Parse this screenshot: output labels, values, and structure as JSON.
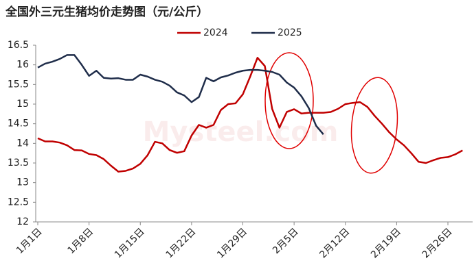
{
  "chart_data": {
    "type": "line",
    "title": "全国外三元生猪均价走势图（元/公斤）",
    "watermark": "Mysteel.com",
    "categories": [
      "1月1日",
      null,
      null,
      null,
      null,
      null,
      null,
      "1月8日",
      null,
      null,
      null,
      null,
      null,
      null,
      "1月15日",
      null,
      null,
      null,
      null,
      null,
      null,
      "1月22日",
      null,
      null,
      null,
      null,
      null,
      null,
      "1月29日",
      null,
      null,
      null,
      null,
      null,
      null,
      "2月5日",
      null,
      null,
      null,
      null,
      null,
      null,
      "2月12日",
      null,
      null,
      null,
      null,
      null,
      null,
      "2月19日",
      null,
      null,
      null,
      null,
      null,
      null,
      "2月26日",
      null,
      null,
      null
    ],
    "series": [
      {
        "name": "2024",
        "color": "#c00000",
        "values": [
          14.13,
          14.05,
          14.05,
          14.02,
          13.95,
          13.83,
          13.82,
          13.73,
          13.7,
          13.6,
          13.43,
          13.28,
          13.3,
          13.36,
          13.48,
          13.7,
          14.04,
          14.0,
          13.83,
          13.76,
          13.8,
          14.2,
          14.47,
          14.4,
          14.47,
          14.85,
          15.0,
          15.02,
          15.25,
          15.7,
          16.18,
          15.97,
          14.88,
          14.4,
          14.8,
          14.87,
          14.76,
          14.78,
          14.78,
          14.78,
          14.8,
          14.88,
          15.0,
          15.03,
          15.05,
          14.93,
          14.7,
          14.5,
          14.28,
          14.1,
          13.95,
          13.75,
          13.53,
          13.5,
          13.57,
          13.63,
          13.65,
          13.72,
          13.82,
          null
        ]
      },
      {
        "name": "2025",
        "color": "#1f2d4a",
        "values": [
          15.93,
          16.03,
          16.08,
          16.15,
          16.25,
          16.25,
          16.0,
          15.72,
          15.85,
          15.67,
          15.65,
          15.66,
          15.62,
          15.62,
          15.75,
          15.7,
          15.62,
          15.57,
          15.47,
          15.3,
          15.22,
          15.05,
          15.18,
          15.67,
          15.58,
          15.68,
          15.73,
          15.8,
          15.85,
          15.87,
          15.87,
          15.85,
          15.82,
          15.75,
          15.55,
          15.42,
          15.2,
          14.9,
          14.45,
          14.23,
          null,
          null,
          null,
          null,
          null,
          null,
          null,
          null,
          null,
          null,
          null,
          null,
          null,
          null,
          null,
          null,
          null,
          null,
          null,
          null
        ]
      }
    ],
    "ylim": [
      12,
      16.5
    ],
    "yticks": [
      12,
      12.5,
      13,
      13.5,
      14,
      14.5,
      15,
      15.5,
      16,
      16.5
    ],
    "legend": "top"
  }
}
